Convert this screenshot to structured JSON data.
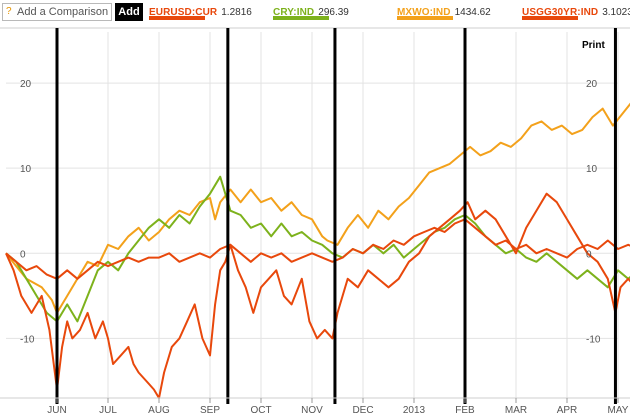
{
  "toolbar": {
    "help_icon": "?",
    "compare_placeholder": "Add a Comparison",
    "add_label": "Add",
    "print_label": "Print"
  },
  "legend": [
    {
      "name": "EURUSD:CUR",
      "value": "1.2816",
      "color": "#e8480c"
    },
    {
      "name": "CRY:IND",
      "value": "296.39",
      "color": "#7db21c"
    },
    {
      "name": "MXWO:IND",
      "value": "1434.62",
      "color": "#f3a11b"
    },
    {
      "name": "USGG30YR:IND",
      "value": "3.1023",
      "color": "#e8480c"
    }
  ],
  "chart_data": {
    "type": "line",
    "y_ticks_left": [
      "20",
      "10",
      "0",
      "-10"
    ],
    "y_ticks_right": [
      "20",
      "10",
      "0",
      "-10"
    ],
    "y_tick_values": [
      20,
      10,
      0,
      -10
    ],
    "ylim": [
      -17,
      26
    ],
    "xlim": [
      0,
      12
    ],
    "x_ticks": [
      {
        "label": "JUN",
        "x": 1
      },
      {
        "label": "JUL",
        "x": 2
      },
      {
        "label": "AUG",
        "x": 3
      },
      {
        "label": "SEP",
        "x": 4
      },
      {
        "label": "OCT",
        "x": 5
      },
      {
        "label": "NOV",
        "x": 6
      },
      {
        "label": "DEC",
        "x": 7
      },
      {
        "label": "2013",
        "x": 8
      },
      {
        "label": "FEB",
        "x": 9
      },
      {
        "label": "MAR",
        "x": 10
      },
      {
        "label": "APR",
        "x": 11
      },
      {
        "label": "MAY",
        "x": 12
      }
    ],
    "grid": true,
    "event_markers": [
      1,
      4.35,
      6.45,
      9,
      11.95
    ],
    "series": [
      {
        "key": "MXWO",
        "color": "#f3a11b",
        "points": [
          [
            0,
            0
          ],
          [
            0.2,
            -1.5
          ],
          [
            0.4,
            -3
          ],
          [
            0.7,
            -4
          ],
          [
            0.9,
            -5.5
          ],
          [
            1,
            -7
          ],
          [
            1.2,
            -5
          ],
          [
            1.4,
            -3
          ],
          [
            1.6,
            -1
          ],
          [
            1.8,
            -1.5
          ],
          [
            2,
            1
          ],
          [
            2.2,
            0.5
          ],
          [
            2.4,
            2
          ],
          [
            2.6,
            3
          ],
          [
            2.8,
            1.5
          ],
          [
            3,
            2.5
          ],
          [
            3.2,
            4
          ],
          [
            3.4,
            5
          ],
          [
            3.6,
            4.5
          ],
          [
            3.8,
            6
          ],
          [
            4,
            6.5
          ],
          [
            4.1,
            4
          ],
          [
            4.2,
            6
          ],
          [
            4.4,
            7.5
          ],
          [
            4.6,
            6
          ],
          [
            4.8,
            7.5
          ],
          [
            5,
            6
          ],
          [
            5.2,
            6.5
          ],
          [
            5.4,
            5
          ],
          [
            5.6,
            6
          ],
          [
            5.8,
            4.5
          ],
          [
            6,
            4
          ],
          [
            6.2,
            2
          ],
          [
            6.3,
            1.5
          ],
          [
            6.5,
            1
          ],
          [
            6.7,
            3
          ],
          [
            6.9,
            4.5
          ],
          [
            7.1,
            3
          ],
          [
            7.3,
            5
          ],
          [
            7.5,
            4
          ],
          [
            7.7,
            5.5
          ],
          [
            7.9,
            6.5
          ],
          [
            8.1,
            8
          ],
          [
            8.3,
            9.5
          ],
          [
            8.5,
            10
          ],
          [
            8.7,
            10.5
          ],
          [
            8.9,
            11.5
          ],
          [
            9.1,
            12.5
          ],
          [
            9.3,
            11.5
          ],
          [
            9.5,
            12
          ],
          [
            9.7,
            13
          ],
          [
            9.9,
            12.5
          ],
          [
            10.1,
            13.5
          ],
          [
            10.3,
            15
          ],
          [
            10.5,
            15.5
          ],
          [
            10.7,
            14.5
          ],
          [
            10.9,
            15
          ],
          [
            11.1,
            14
          ],
          [
            11.3,
            14.5
          ],
          [
            11.5,
            16
          ],
          [
            11.7,
            17
          ],
          [
            11.9,
            15
          ],
          [
            12.1,
            16.5
          ],
          [
            12.3,
            18
          ],
          [
            12.5,
            19.5
          ]
        ]
      },
      {
        "key": "CRY",
        "color": "#7db21c",
        "points": [
          [
            0,
            0
          ],
          [
            0.2,
            -1
          ],
          [
            0.4,
            -3
          ],
          [
            0.6,
            -5
          ],
          [
            0.8,
            -7
          ],
          [
            1,
            -8
          ],
          [
            1.2,
            -6
          ],
          [
            1.4,
            -8
          ],
          [
            1.6,
            -5
          ],
          [
            1.8,
            -2
          ],
          [
            2,
            -1
          ],
          [
            2.2,
            -2
          ],
          [
            2.4,
            0
          ],
          [
            2.6,
            1.5
          ],
          [
            2.8,
            3
          ],
          [
            3,
            4
          ],
          [
            3.2,
            3
          ],
          [
            3.4,
            4.5
          ],
          [
            3.6,
            3.5
          ],
          [
            3.8,
            5.5
          ],
          [
            4,
            7
          ],
          [
            4.2,
            9
          ],
          [
            4.4,
            5
          ],
          [
            4.6,
            4.5
          ],
          [
            4.8,
            3
          ],
          [
            5,
            3.5
          ],
          [
            5.2,
            2
          ],
          [
            5.4,
            3.5
          ],
          [
            5.6,
            2
          ],
          [
            5.8,
            2.5
          ],
          [
            6,
            1.5
          ],
          [
            6.2,
            1
          ],
          [
            6.4,
            0
          ],
          [
            6.6,
            -0.5
          ],
          [
            6.8,
            0.5
          ],
          [
            7,
            0
          ],
          [
            7.2,
            1
          ],
          [
            7.4,
            0
          ],
          [
            7.6,
            1
          ],
          [
            7.8,
            -0.5
          ],
          [
            8,
            0.5
          ],
          [
            8.2,
            1.5
          ],
          [
            8.4,
            2.5
          ],
          [
            8.6,
            3
          ],
          [
            8.8,
            4
          ],
          [
            9,
            4.5
          ],
          [
            9.2,
            3.5
          ],
          [
            9.4,
            2
          ],
          [
            9.6,
            1
          ],
          [
            9.8,
            0
          ],
          [
            10,
            0.5
          ],
          [
            10.2,
            -0.5
          ],
          [
            10.4,
            -1
          ],
          [
            10.6,
            0
          ],
          [
            10.8,
            -1
          ],
          [
            11,
            -2
          ],
          [
            11.2,
            -3
          ],
          [
            11.4,
            -2
          ],
          [
            11.6,
            -3
          ],
          [
            11.8,
            -4
          ],
          [
            12,
            -2
          ],
          [
            12.2,
            -3
          ],
          [
            12.4,
            -2
          ],
          [
            12.5,
            -1.5
          ]
        ]
      },
      {
        "key": "EURUSD",
        "color": "#e8480c",
        "points": [
          [
            0,
            0
          ],
          [
            0.2,
            -1
          ],
          [
            0.4,
            -2
          ],
          [
            0.6,
            -1.5
          ],
          [
            0.8,
            -2.5
          ],
          [
            1,
            -3
          ],
          [
            1.2,
            -2
          ],
          [
            1.4,
            -3
          ],
          [
            1.6,
            -2
          ],
          [
            1.8,
            -1
          ],
          [
            2,
            -1.5
          ],
          [
            2.2,
            -1
          ],
          [
            2.4,
            -0.5
          ],
          [
            2.6,
            -1
          ],
          [
            2.8,
            -0.5
          ],
          [
            3,
            -0.5
          ],
          [
            3.2,
            0
          ],
          [
            3.4,
            -1
          ],
          [
            3.6,
            -0.5
          ],
          [
            3.8,
            0
          ],
          [
            4,
            -0.5
          ],
          [
            4.2,
            0.5
          ],
          [
            4.4,
            1
          ],
          [
            4.6,
            0
          ],
          [
            4.8,
            -1
          ],
          [
            5,
            0
          ],
          [
            5.2,
            -0.5
          ],
          [
            5.4,
            0
          ],
          [
            5.6,
            -1
          ],
          [
            5.8,
            -0.5
          ],
          [
            6,
            0
          ],
          [
            6.2,
            -0.5
          ],
          [
            6.4,
            -1
          ],
          [
            6.6,
            -0.5
          ],
          [
            6.8,
            0.5
          ],
          [
            7,
            0
          ],
          [
            7.2,
            1
          ],
          [
            7.4,
            0.5
          ],
          [
            7.6,
            1.5
          ],
          [
            7.8,
            1
          ],
          [
            8,
            2
          ],
          [
            8.2,
            2.5
          ],
          [
            8.4,
            3
          ],
          [
            8.6,
            2.5
          ],
          [
            8.8,
            3.5
          ],
          [
            9,
            4
          ],
          [
            9.2,
            3
          ],
          [
            9.4,
            2
          ],
          [
            9.6,
            1
          ],
          [
            9.8,
            1.5
          ],
          [
            10,
            0.5
          ],
          [
            10.2,
            1
          ],
          [
            10.4,
            0
          ],
          [
            10.6,
            0.5
          ],
          [
            10.8,
            0
          ],
          [
            11,
            -0.5
          ],
          [
            11.2,
            0.5
          ],
          [
            11.4,
            1
          ],
          [
            11.6,
            0.5
          ],
          [
            11.8,
            1.5
          ],
          [
            12,
            0.5
          ],
          [
            12.2,
            1
          ],
          [
            12.4,
            0.5
          ],
          [
            12.5,
            0.5
          ]
        ]
      },
      {
        "key": "USGG30YR",
        "color": "#e8480c",
        "points": [
          [
            0,
            0
          ],
          [
            0.15,
            -2
          ],
          [
            0.3,
            -5
          ],
          [
            0.5,
            -7
          ],
          [
            0.7,
            -5
          ],
          [
            0.85,
            -9
          ],
          [
            1,
            -16
          ],
          [
            1.1,
            -11
          ],
          [
            1.2,
            -8
          ],
          [
            1.3,
            -10
          ],
          [
            1.45,
            -9
          ],
          [
            1.6,
            -7
          ],
          [
            1.75,
            -10
          ],
          [
            1.9,
            -8
          ],
          [
            2,
            -10
          ],
          [
            2.1,
            -13
          ],
          [
            2.25,
            -12
          ],
          [
            2.4,
            -11
          ],
          [
            2.5,
            -13
          ],
          [
            2.6,
            -14
          ],
          [
            2.75,
            -15
          ],
          [
            2.9,
            -16
          ],
          [
            3,
            -17
          ],
          [
            3.1,
            -14
          ],
          [
            3.25,
            -11
          ],
          [
            3.4,
            -10
          ],
          [
            3.55,
            -8
          ],
          [
            3.7,
            -6
          ],
          [
            3.85,
            -10
          ],
          [
            4,
            -12
          ],
          [
            4.1,
            -6
          ],
          [
            4.2,
            -2
          ],
          [
            4.3,
            -1
          ],
          [
            4.4,
            1
          ],
          [
            4.55,
            -2
          ],
          [
            4.7,
            -4
          ],
          [
            4.85,
            -7
          ],
          [
            5,
            -4
          ],
          [
            5.15,
            -3
          ],
          [
            5.3,
            -2
          ],
          [
            5.45,
            -5
          ],
          [
            5.6,
            -6
          ],
          [
            5.8,
            -3
          ],
          [
            5.95,
            -8
          ],
          [
            6.1,
            -10
          ],
          [
            6.25,
            -9
          ],
          [
            6.4,
            -10
          ],
          [
            6.5,
            -7
          ],
          [
            6.7,
            -3
          ],
          [
            6.9,
            -4
          ],
          [
            7.1,
            -2
          ],
          [
            7.3,
            -3
          ],
          [
            7.5,
            -4
          ],
          [
            7.7,
            -3
          ],
          [
            7.9,
            -1
          ],
          [
            8.1,
            0
          ],
          [
            8.3,
            2
          ],
          [
            8.5,
            3
          ],
          [
            8.7,
            4
          ],
          [
            8.9,
            5
          ],
          [
            9.05,
            6
          ],
          [
            9.2,
            4
          ],
          [
            9.4,
            5
          ],
          [
            9.6,
            4
          ],
          [
            9.8,
            2
          ],
          [
            10,
            0
          ],
          [
            10.2,
            3
          ],
          [
            10.4,
            5
          ],
          [
            10.6,
            7
          ],
          [
            10.8,
            6
          ],
          [
            11,
            4
          ],
          [
            11.2,
            2
          ],
          [
            11.4,
            0
          ],
          [
            11.6,
            -1
          ],
          [
            11.8,
            -3
          ],
          [
            11.95,
            -7
          ],
          [
            12.05,
            -4
          ],
          [
            12.2,
            -3
          ],
          [
            12.35,
            -4
          ],
          [
            12.45,
            -8
          ],
          [
            12.5,
            -2
          ]
        ]
      }
    ]
  }
}
